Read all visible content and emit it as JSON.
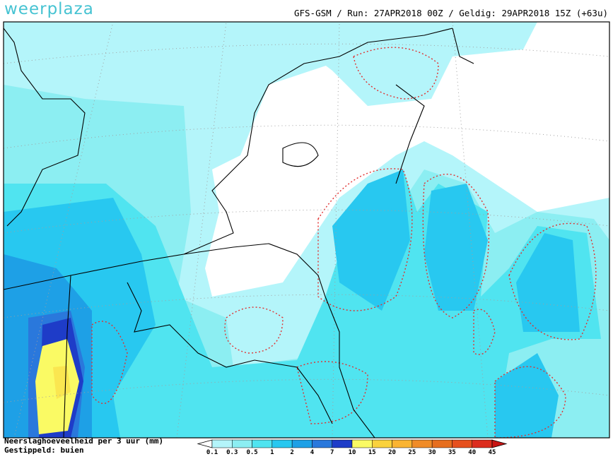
{
  "logo": "weerplaza",
  "header": "GFS-GSM / Run: 27APR2018 00Z / Geldig: 29APR2018 15Z (+63u)",
  "legend": {
    "title": "Neerslaghoeveelheid per 3 uur (mm)",
    "subtitle": "Gestippeld: buien",
    "labels": [
      0.1,
      0.3,
      0.5,
      1,
      2,
      4,
      7,
      10,
      15,
      20,
      25,
      30,
      35,
      40,
      45
    ],
    "colors": [
      "#ffffff",
      "#b4f5fa",
      "#8ceef2",
      "#50e4f0",
      "#28c8f0",
      "#1ea0e6",
      "#2a78dc",
      "#1e3cc8",
      "#fafa64",
      "#fad23c",
      "#fab432",
      "#f08c28",
      "#e66e1e",
      "#e6501e",
      "#dc2d1e",
      "#c81414"
    ]
  }
}
